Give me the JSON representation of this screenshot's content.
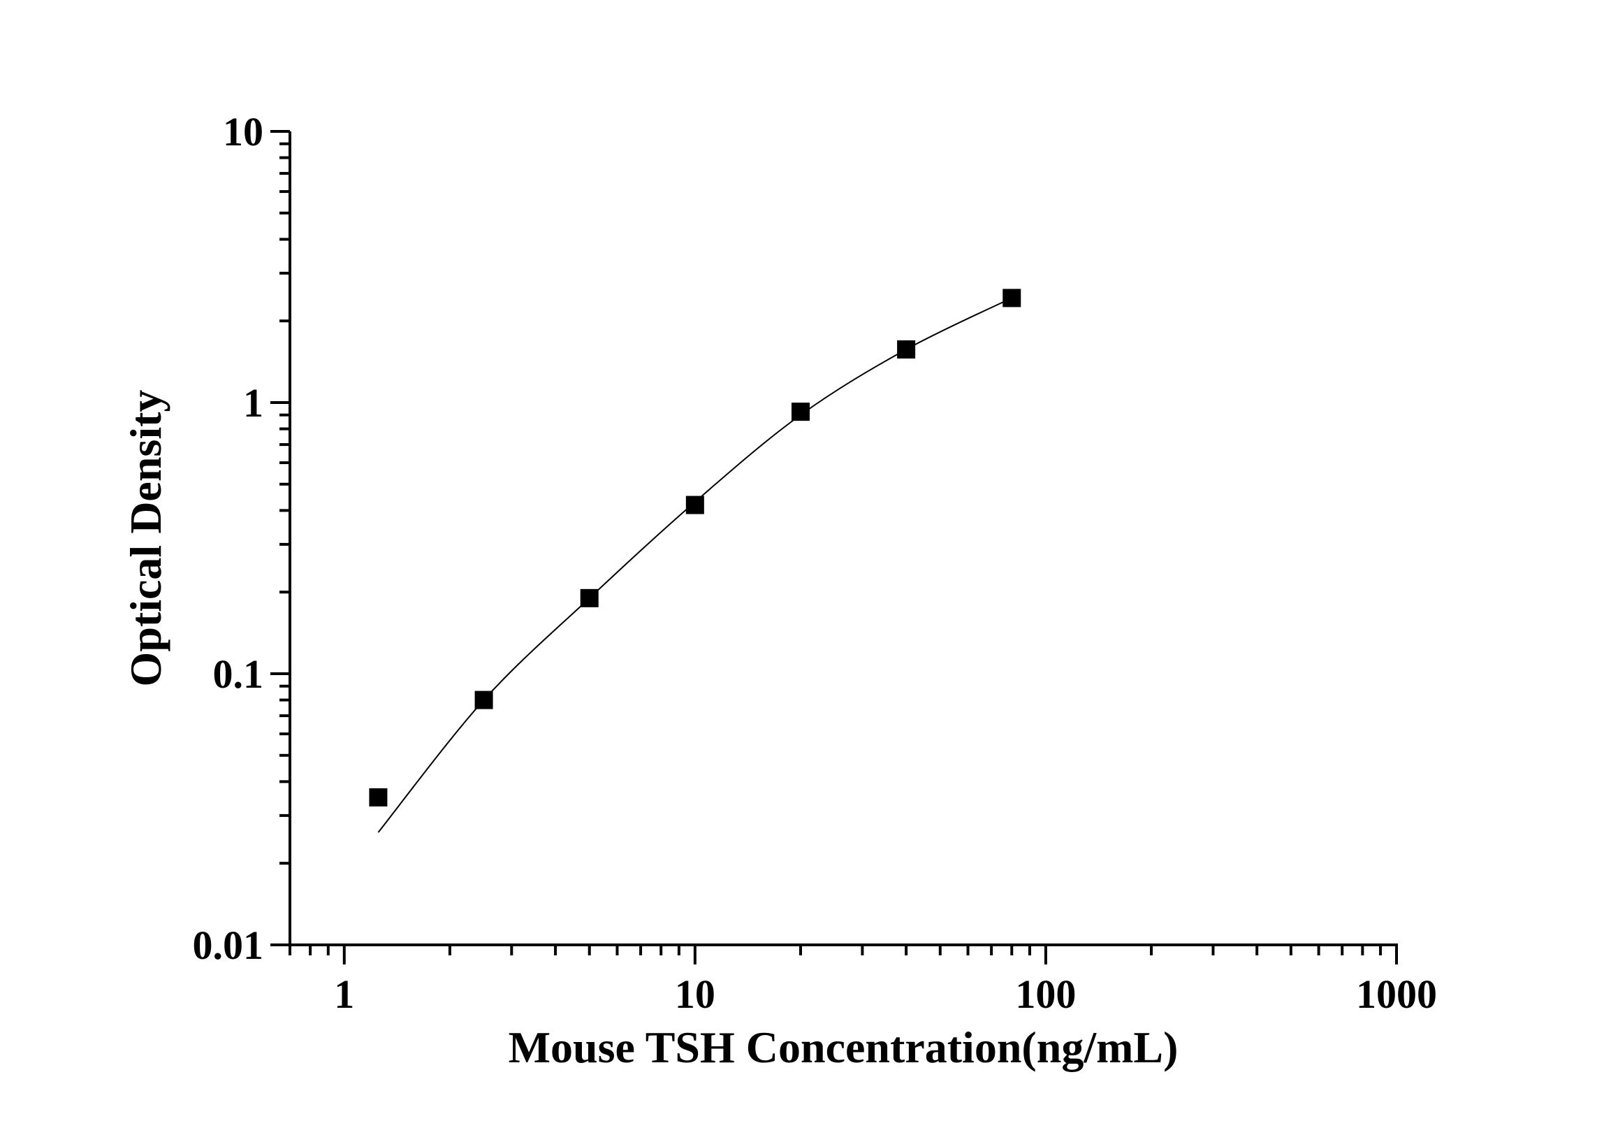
{
  "chart_data": {
    "type": "scatter",
    "title": "",
    "xlabel": "Mouse TSH Concentration(ng/mL)",
    "ylabel": "Optical Density",
    "xscale": "log",
    "yscale": "log",
    "xlim": [
      0.7,
      1000
    ],
    "ylim": [
      0.01,
      10
    ],
    "xticks": [
      1,
      10,
      100,
      1000
    ],
    "xtick_labels": [
      "1",
      "10",
      "100",
      "1000"
    ],
    "yticks": [
      0.01,
      0.1,
      1,
      10
    ],
    "ytick_labels": [
      "0.01",
      "0.1",
      "1",
      "10"
    ],
    "grid": false,
    "marker_color": "#000000",
    "series": [
      {
        "marker": "square",
        "x": [
          1.25,
          2.5,
          5,
          10,
          20,
          40,
          80
        ],
        "y": [
          0.035,
          0.08,
          0.19,
          0.419,
          0.925,
          1.57,
          2.43
        ]
      }
    ],
    "fit_curve": {
      "x": [
        1.25,
        2.5,
        5,
        10,
        20,
        40,
        80
      ],
      "y": [
        0.026,
        0.08,
        0.19,
        0.43,
        0.9,
        1.57,
        2.43
      ]
    }
  }
}
